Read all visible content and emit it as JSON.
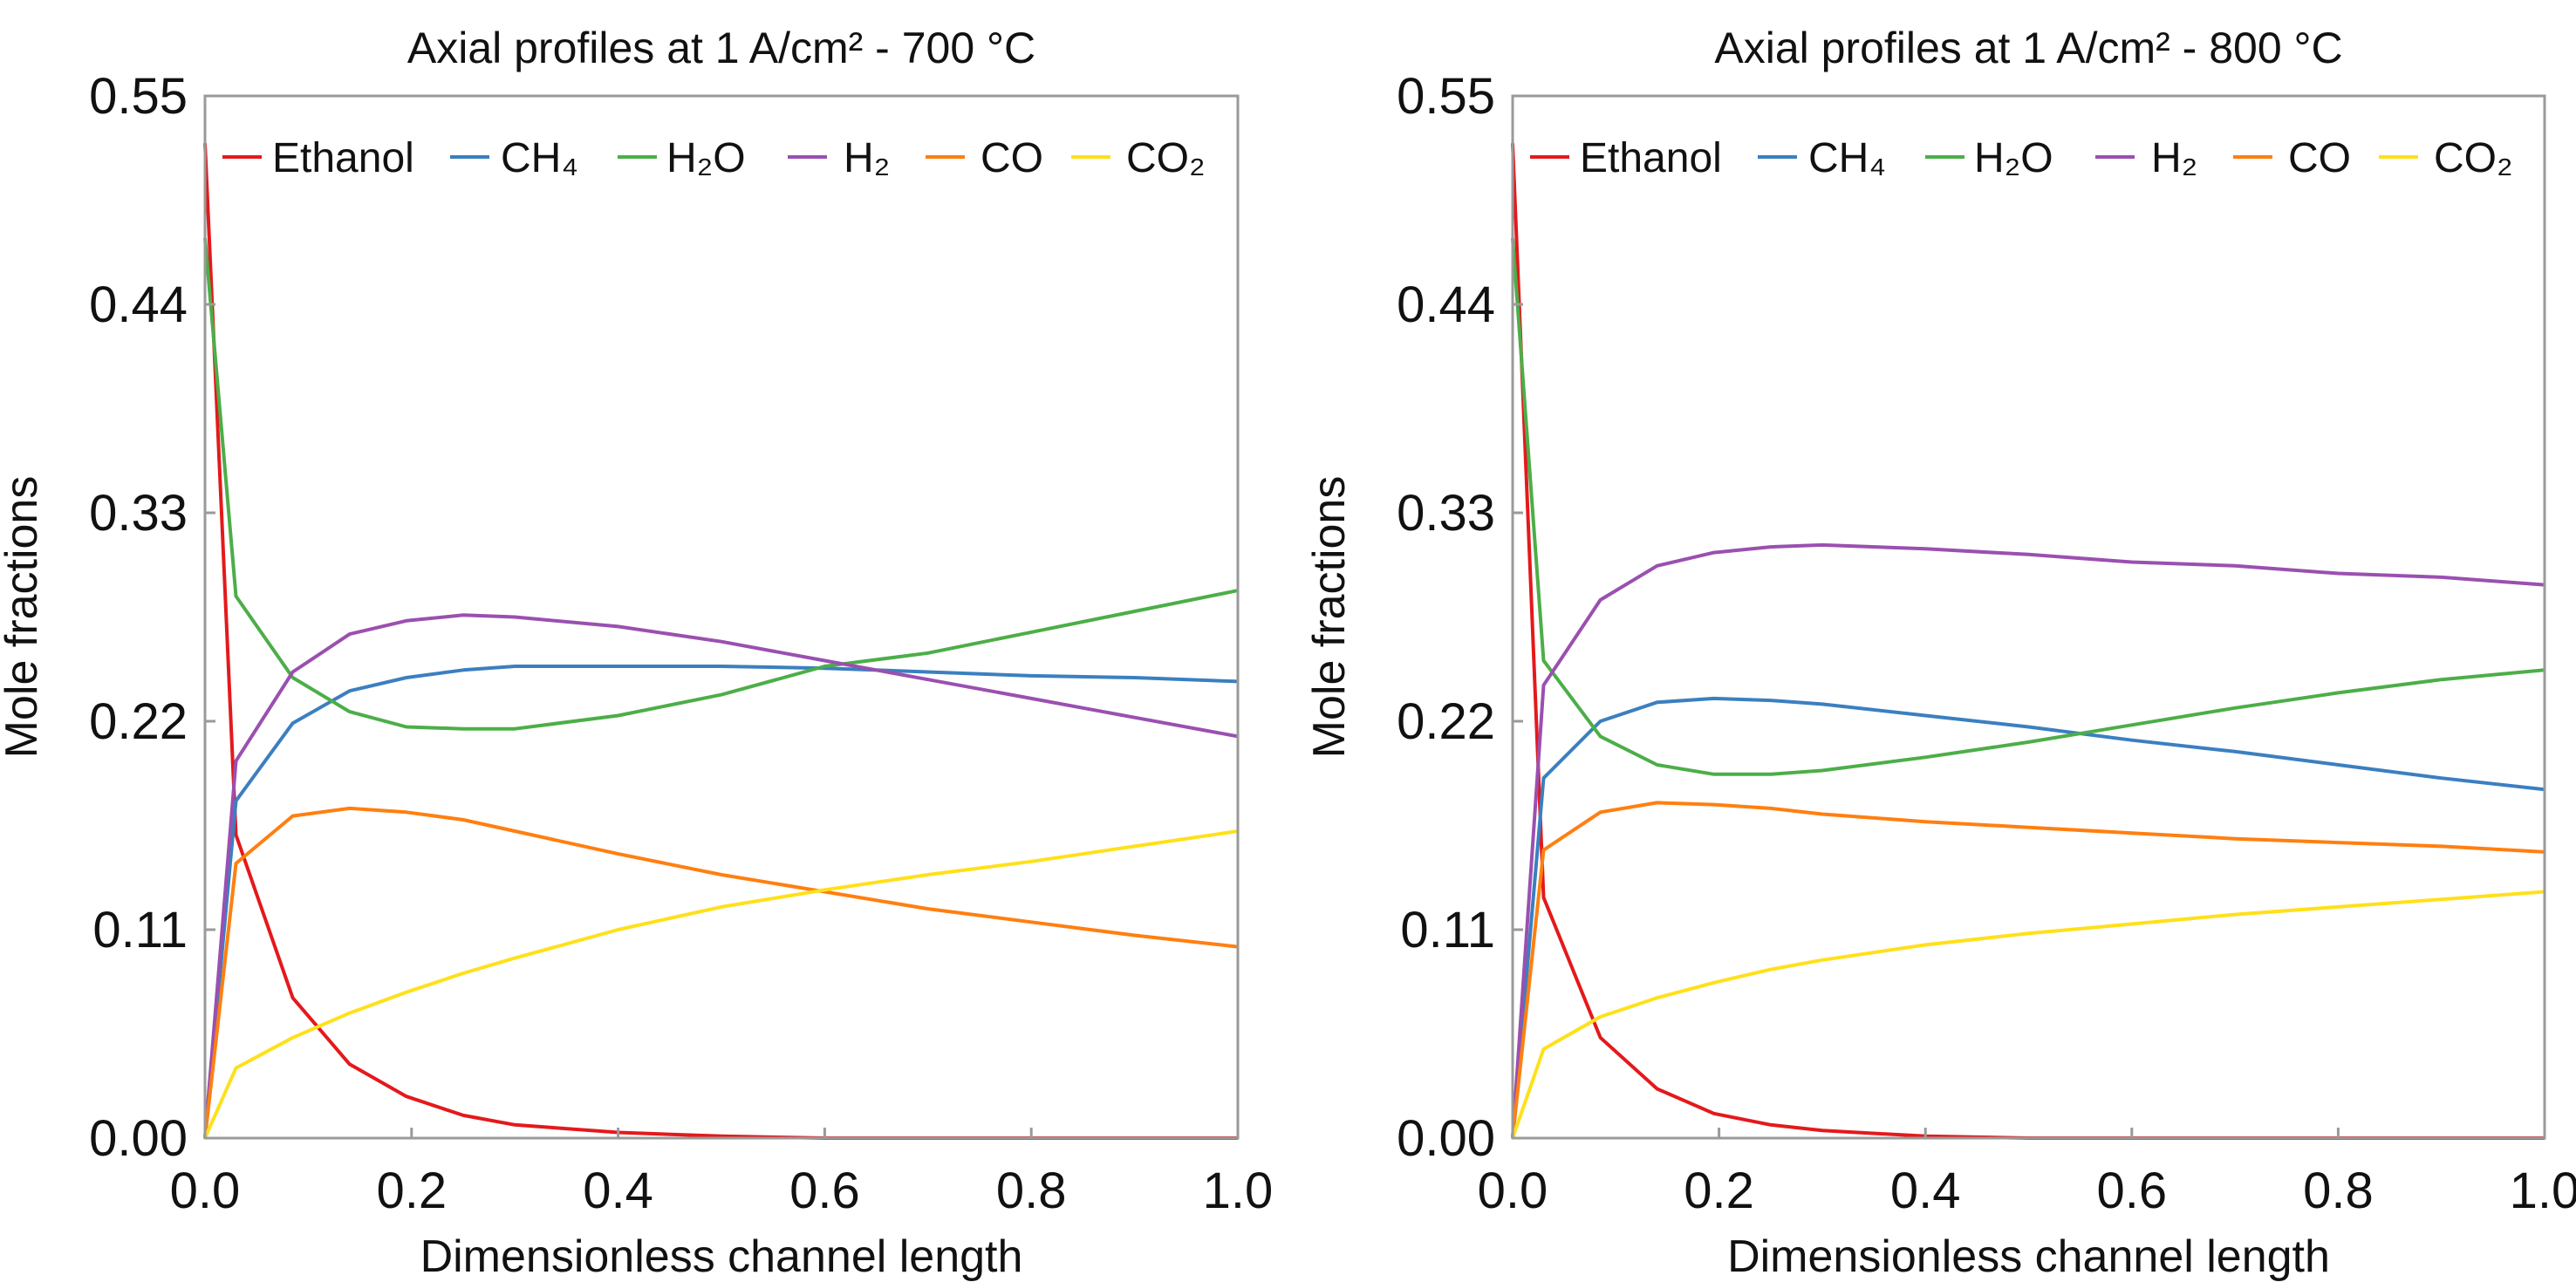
{
  "chart_data": [
    {
      "type": "line",
      "title": "Axial profiles at 1 A/cm² - 700 °C",
      "xlabel": "Dimensionless channel length",
      "ylabel": "Mole fractions",
      "xlim": [
        0,
        1
      ],
      "ylim": [
        0,
        0.55
      ],
      "xticks": [
        "0.0",
        "0.2",
        "0.4",
        "0.6",
        "0.8",
        "1.0"
      ],
      "yticks": [
        "0.00",
        "0.11",
        "0.22",
        "0.33",
        "0.44",
        "0.55"
      ],
      "grid": false,
      "legend_position": "top",
      "x": [
        0,
        0.03,
        0.085,
        0.14,
        0.195,
        0.25,
        0.3,
        0.4,
        0.5,
        0.6,
        0.7,
        0.8,
        0.9,
        1.0
      ],
      "series": [
        {
          "name": "Ethanol",
          "color": "#e4191c",
          "values": [
            0.525,
            0.16,
            0.074,
            0.039,
            0.022,
            0.012,
            0.007,
            0.003,
            0.001,
            0,
            0,
            0,
            0,
            0
          ]
        },
        {
          "name": "CH₄",
          "color": "#3b7fc0",
          "values": [
            0,
            0.178,
            0.219,
            0.236,
            0.243,
            0.247,
            0.249,
            0.249,
            0.249,
            0.248,
            0.246,
            0.244,
            0.243,
            0.241
          ]
        },
        {
          "name": "H₂O",
          "color": "#4cae48",
          "values": [
            0.475,
            0.286,
            0.243,
            0.225,
            0.217,
            0.216,
            0.216,
            0.223,
            0.234,
            0.249,
            0.256,
            0.267,
            0.278,
            0.289
          ]
        },
        {
          "name": "H₂",
          "color": "#9a50b0",
          "values": [
            0,
            0.199,
            0.246,
            0.266,
            0.273,
            0.276,
            0.275,
            0.27,
            0.262,
            0.252,
            0.242,
            0.232,
            0.222,
            0.212
          ]
        },
        {
          "name": "CO",
          "color": "#ff7f10",
          "values": [
            0,
            0.145,
            0.17,
            0.174,
            0.172,
            0.168,
            0.162,
            0.15,
            0.139,
            0.13,
            0.121,
            0.114,
            0.107,
            0.101
          ]
        },
        {
          "name": "CO₂",
          "color": "#ffe01a",
          "values": [
            0,
            0.037,
            0.053,
            0.066,
            0.077,
            0.087,
            0.095,
            0.11,
            0.122,
            0.131,
            0.139,
            0.146,
            0.154,
            0.162
          ]
        }
      ]
    },
    {
      "type": "line",
      "title": "Axial profiles at 1 A/cm² - 800 °C",
      "xlabel": "Dimensionless channel length",
      "ylabel": "Mole fractions",
      "xlim": [
        0,
        1
      ],
      "ylim": [
        0,
        0.55
      ],
      "xticks": [
        "0.0",
        "0.2",
        "0.4",
        "0.6",
        "0.8",
        "1.0"
      ],
      "yticks": [
        "0.00",
        "0.11",
        "0.22",
        "0.33",
        "0.44",
        "0.55"
      ],
      "grid": false,
      "legend_position": "top",
      "x": [
        0,
        0.03,
        0.085,
        0.14,
        0.195,
        0.25,
        0.3,
        0.4,
        0.5,
        0.6,
        0.7,
        0.8,
        0.9,
        1.0
      ],
      "series": [
        {
          "name": "Ethanol",
          "color": "#e4191c",
          "values": [
            0.525,
            0.127,
            0.053,
            0.026,
            0.013,
            0.007,
            0.004,
            0.001,
            0,
            0,
            0,
            0,
            0,
            0
          ]
        },
        {
          "name": "CH₄",
          "color": "#3b7fc0",
          "values": [
            0,
            0.19,
            0.22,
            0.23,
            0.232,
            0.231,
            0.229,
            0.223,
            0.217,
            0.21,
            0.204,
            0.197,
            0.19,
            0.184
          ]
        },
        {
          "name": "H₂O",
          "color": "#4cae48",
          "values": [
            0.475,
            0.252,
            0.212,
            0.197,
            0.192,
            0.192,
            0.194,
            0.201,
            0.209,
            0.218,
            0.227,
            0.235,
            0.242,
            0.247
          ]
        },
        {
          "name": "H₂",
          "color": "#9a50b0",
          "values": [
            0,
            0.239,
            0.284,
            0.302,
            0.309,
            0.312,
            0.313,
            0.311,
            0.308,
            0.304,
            0.302,
            0.298,
            0.296,
            0.292
          ]
        },
        {
          "name": "CO",
          "color": "#ff7f10",
          "values": [
            0,
            0.152,
            0.172,
            0.177,
            0.176,
            0.174,
            0.171,
            0.167,
            0.164,
            0.161,
            0.158,
            0.156,
            0.154,
            0.151
          ]
        },
        {
          "name": "CO₂",
          "color": "#ffe01a",
          "values": [
            0,
            0.047,
            0.064,
            0.074,
            0.082,
            0.089,
            0.094,
            0.102,
            0.108,
            0.113,
            0.118,
            0.122,
            0.126,
            0.13
          ]
        }
      ]
    }
  ]
}
